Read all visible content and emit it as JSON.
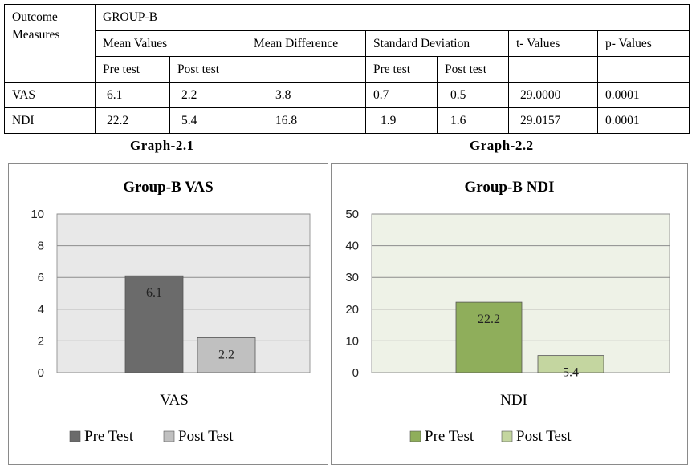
{
  "table": {
    "header": {
      "outcome": "Outcome Measures",
      "group": "GROUP-B",
      "mean_values": "Mean Values",
      "mean_difference": "Mean Difference",
      "standard_deviation": "Standard Deviation",
      "t_values": "t- Values",
      "p_values": "p- Values",
      "pre_test": "Pre test",
      "post_test": "Post test",
      "sd_pre_test": "Pre test",
      "sd_post_test": "Post test"
    },
    "rows": [
      {
        "measure": "VAS",
        "mean_pre": "6.1",
        "mean_post": "2.2",
        "mean_diff": "3.8",
        "sd_pre": "0.7",
        "sd_post": "0.5",
        "t": "29.0000",
        "p": "0.0001"
      },
      {
        "measure": "NDI",
        "mean_pre": "22.2",
        "mean_post": "5.4",
        "mean_diff": "16.8",
        "sd_pre": "1.9",
        "sd_post": "1.6",
        "t": "29.0157",
        "p": "0.0001"
      }
    ]
  },
  "graph_captions": [
    "Graph-2.1",
    "Graph-2.2"
  ],
  "chart_data": [
    {
      "type": "bar",
      "title": "Group-B VAS",
      "xlabel": "VAS",
      "categories": [
        "VAS"
      ],
      "series": [
        {
          "name": "Pre Test",
          "values": [
            6.1
          ],
          "labels": [
            "6.1"
          ],
          "color": "#6b6b6b"
        },
        {
          "name": "Post Test",
          "values": [
            2.2
          ],
          "labels": [
            "2.2"
          ],
          "color": "#c0c0c0"
        }
      ],
      "ylim": [
        0,
        10
      ],
      "yticks": [
        "0",
        "2",
        "4",
        "6",
        "8",
        "10"
      ],
      "grid": true,
      "legend": "bottom",
      "plot_bg": "#e8e8e8"
    },
    {
      "type": "bar",
      "title": "Group-B NDI",
      "xlabel": "NDI",
      "categories": [
        "NDI"
      ],
      "series": [
        {
          "name": "Pre Test",
          "values": [
            22.2
          ],
          "labels": [
            "22.2"
          ],
          "color": "#8fae5b"
        },
        {
          "name": "Post Test",
          "values": [
            5.4
          ],
          "labels": [
            "5.4"
          ],
          "color": "#c4d6a0"
        }
      ],
      "ylim": [
        0,
        50
      ],
      "yticks": [
        "0",
        "10",
        "20",
        "30",
        "40",
        "50"
      ],
      "grid": true,
      "legend": "bottom",
      "plot_bg": "#eef2e7"
    }
  ]
}
